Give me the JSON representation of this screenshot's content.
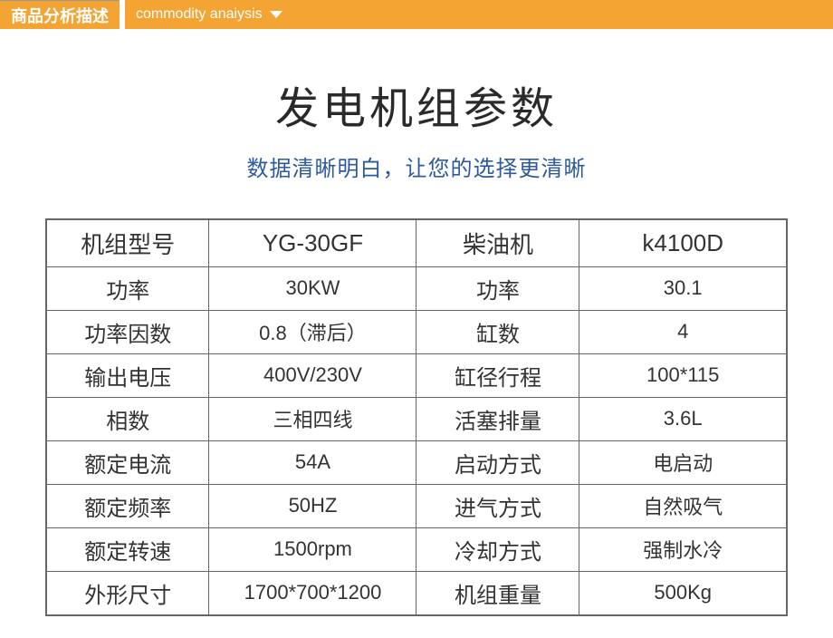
{
  "header": {
    "label": "商品分析描述",
    "subtitle": "commodity anaiysis"
  },
  "title": {
    "main": "发电机组参数",
    "sub": "数据清晰明白，让您的选择更清晰"
  },
  "table": {
    "border_color": "#666666",
    "text_color": "#333333",
    "rows": [
      {
        "l1": "机组型号",
        "v1": "YG-30GF",
        "l2": "柴油机",
        "v2": "k4100D"
      },
      {
        "l1": "功率",
        "v1": "30KW",
        "l2": "功率",
        "v2": "30.1"
      },
      {
        "l1": "功率因数",
        "v1": "0.8（滞后）",
        "l2": "缸数",
        "v2": "4"
      },
      {
        "l1": "输出电压",
        "v1": "400V/230V",
        "l2": "缸径行程",
        "v2": "100*115"
      },
      {
        "l1": "相数",
        "v1": "三相四线",
        "l2": "活塞排量",
        "v2": "3.6L"
      },
      {
        "l1": "额定电流",
        "v1": "54A",
        "l2": "启动方式",
        "v2": "电启动"
      },
      {
        "l1": "额定频率",
        "v1": "50HZ",
        "l2": "进气方式",
        "v2": "自然吸气"
      },
      {
        "l1": "额定转速",
        "v1": "1500rpm",
        "l2": "冷却方式",
        "v2": "强制水冷"
      },
      {
        "l1": "外形尺寸",
        "v1": "1700*700*1200",
        "l2": "机组重量",
        "v2": "500Kg"
      }
    ]
  },
  "colors": {
    "header_bg": "#f4a433",
    "header_text": "#ffffff",
    "title_text": "#2a2a2a",
    "subtitle_text": "#2d5a9e",
    "background": "#ffffff"
  }
}
